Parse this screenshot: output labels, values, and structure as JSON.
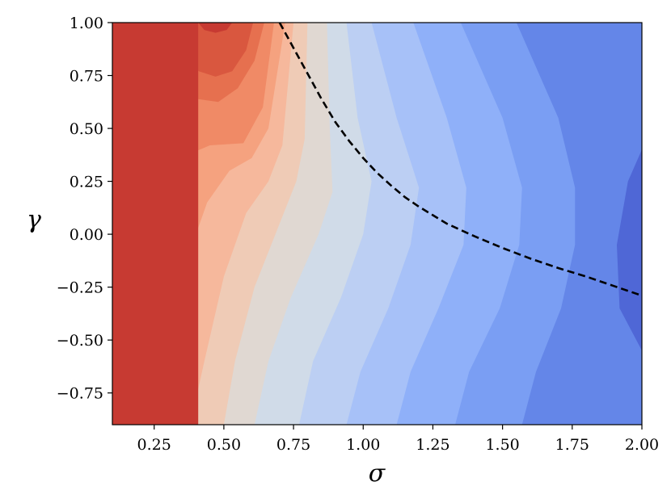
{
  "chart_data": {
    "type": "contour",
    "title": "",
    "xlabel": "σ",
    "ylabel": "γ",
    "xlim": [
      0.1,
      2.0
    ],
    "ylim": [
      -0.9,
      1.0
    ],
    "x_ticks": [
      0.25,
      0.5,
      0.75,
      1.0,
      1.25,
      1.5,
      1.75,
      2.0
    ],
    "x_tick_labels": [
      "0.25",
      "0.50",
      "0.75",
      "1.00",
      "1.25",
      "1.50",
      "1.75",
      "2.00"
    ],
    "y_ticks": [
      -0.75,
      -0.5,
      -0.25,
      0.0,
      0.25,
      0.5,
      0.75,
      1.0
    ],
    "y_tick_labels": [
      "−0.75",
      "−0.50",
      "−0.25",
      "0.00",
      "0.25",
      "0.50",
      "0.75",
      "1.00"
    ],
    "colormap": "coolwarm",
    "colors_high_to_low": [
      "#c73a32",
      "#d9573f",
      "#e6704f",
      "#f08a66",
      "#f5a27f",
      "#f6b89c",
      "#efcbb6",
      "#e0d8d2",
      "#d0dbe8",
      "#bccff3",
      "#a7c1f8",
      "#8fb0f9",
      "#7a9ef3",
      "#6486e8",
      "#4f67d6"
    ],
    "level_boundaries": [
      [
        [
          0.408,
          1.0
        ],
        [
          0.43,
          0.965
        ],
        [
          0.47,
          0.952
        ],
        [
          0.51,
          0.965
        ],
        [
          0.53,
          1.0
        ]
      ],
      [
        [
          0.34,
          1.0
        ],
        [
          0.36,
          0.86
        ],
        [
          0.41,
          0.77
        ],
        [
          0.47,
          0.745
        ],
        [
          0.53,
          0.77
        ],
        [
          0.58,
          0.87
        ],
        [
          0.605,
          1.0
        ]
      ],
      [
        [
          0.26,
          1.0
        ],
        [
          0.31,
          0.78
        ],
        [
          0.4,
          0.64
        ],
        [
          0.48,
          0.625
        ],
        [
          0.55,
          0.69
        ],
        [
          0.61,
          0.82
        ],
        [
          0.645,
          1.0
        ]
      ],
      [
        [
          0.1,
          0.0
        ],
        [
          0.23,
          0.0
        ],
        [
          0.29,
          0.22
        ],
        [
          0.36,
          0.37
        ],
        [
          0.45,
          0.42
        ],
        [
          0.57,
          0.43
        ],
        [
          0.64,
          0.6
        ],
        [
          0.68,
          1.0
        ]
      ],
      [
        [
          0.26,
          -0.9
        ],
        [
          0.3,
          -0.55
        ],
        [
          0.36,
          -0.15
        ],
        [
          0.44,
          0.15
        ],
        [
          0.52,
          0.3
        ],
        [
          0.6,
          0.36
        ],
        [
          0.66,
          0.5
        ],
        [
          0.72,
          1.0
        ]
      ],
      [
        [
          0.38,
          -0.9
        ],
        [
          0.43,
          -0.6
        ],
        [
          0.5,
          -0.2
        ],
        [
          0.58,
          0.1
        ],
        [
          0.66,
          0.25
        ],
        [
          0.71,
          0.42
        ],
        [
          0.75,
          1.0
        ]
      ],
      [
        [
          0.5,
          -0.9
        ],
        [
          0.54,
          -0.6
        ],
        [
          0.61,
          -0.25
        ],
        [
          0.7,
          0.05
        ],
        [
          0.76,
          0.25
        ],
        [
          0.79,
          0.45
        ],
        [
          0.8,
          1.0
        ]
      ],
      [
        [
          0.61,
          -0.9
        ],
        [
          0.66,
          -0.6
        ],
        [
          0.74,
          -0.3
        ],
        [
          0.84,
          0.0
        ],
        [
          0.89,
          0.2
        ],
        [
          0.88,
          0.5
        ],
        [
          0.87,
          1.0
        ]
      ],
      [
        [
          0.77,
          -0.9
        ],
        [
          0.82,
          -0.6
        ],
        [
          0.92,
          -0.3
        ],
        [
          1.0,
          0.0
        ],
        [
          1.03,
          0.25
        ],
        [
          0.98,
          0.55
        ],
        [
          0.94,
          1.0
        ]
      ],
      [
        [
          0.94,
          -0.9
        ],
        [
          0.99,
          -0.65
        ],
        [
          1.09,
          -0.35
        ],
        [
          1.17,
          -0.05
        ],
        [
          1.2,
          0.22
        ],
        [
          1.12,
          0.55
        ],
        [
          1.03,
          1.0
        ]
      ],
      [
        [
          1.12,
          -0.9
        ],
        [
          1.17,
          -0.65
        ],
        [
          1.27,
          -0.35
        ],
        [
          1.36,
          -0.05
        ],
        [
          1.37,
          0.22
        ],
        [
          1.3,
          0.55
        ],
        [
          1.18,
          1.0
        ]
      ],
      [
        [
          1.33,
          -0.9
        ],
        [
          1.38,
          -0.65
        ],
        [
          1.49,
          -0.35
        ],
        [
          1.56,
          -0.05
        ],
        [
          1.57,
          0.22
        ],
        [
          1.5,
          0.55
        ],
        [
          1.35,
          1.0
        ]
      ],
      [
        [
          1.57,
          -0.9
        ],
        [
          1.62,
          -0.65
        ],
        [
          1.71,
          -0.35
        ],
        [
          1.76,
          -0.05
        ],
        [
          1.76,
          0.22
        ],
        [
          1.7,
          0.55
        ],
        [
          1.55,
          1.0
        ]
      ],
      [
        [
          2.0,
          -0.55
        ],
        [
          1.92,
          -0.35
        ],
        [
          1.91,
          -0.05
        ],
        [
          1.95,
          0.25
        ],
        [
          2.0,
          0.4
        ]
      ],
      [
        [
          1.8,
          1.0
        ],
        [
          1.88,
          0.85
        ],
        [
          1.95,
          0.7
        ],
        [
          2.0,
          0.62
        ]
      ]
    ],
    "dashed_curve": {
      "color": "#000000",
      "points": [
        [
          0.7,
          1.0
        ],
        [
          0.75,
          0.88
        ],
        [
          0.8,
          0.76
        ],
        [
          0.85,
          0.64
        ],
        [
          0.9,
          0.53
        ],
        [
          0.95,
          0.44
        ],
        [
          1.0,
          0.36
        ],
        [
          1.05,
          0.29
        ],
        [
          1.1,
          0.23
        ],
        [
          1.15,
          0.175
        ],
        [
          1.2,
          0.13
        ],
        [
          1.25,
          0.09
        ],
        [
          1.3,
          0.05
        ],
        [
          1.4,
          -0.01
        ],
        [
          1.5,
          -0.065
        ],
        [
          1.6,
          -0.115
        ],
        [
          1.7,
          -0.16
        ],
        [
          1.8,
          -0.2
        ],
        [
          1.9,
          -0.245
        ],
        [
          2.0,
          -0.29
        ]
      ]
    }
  }
}
